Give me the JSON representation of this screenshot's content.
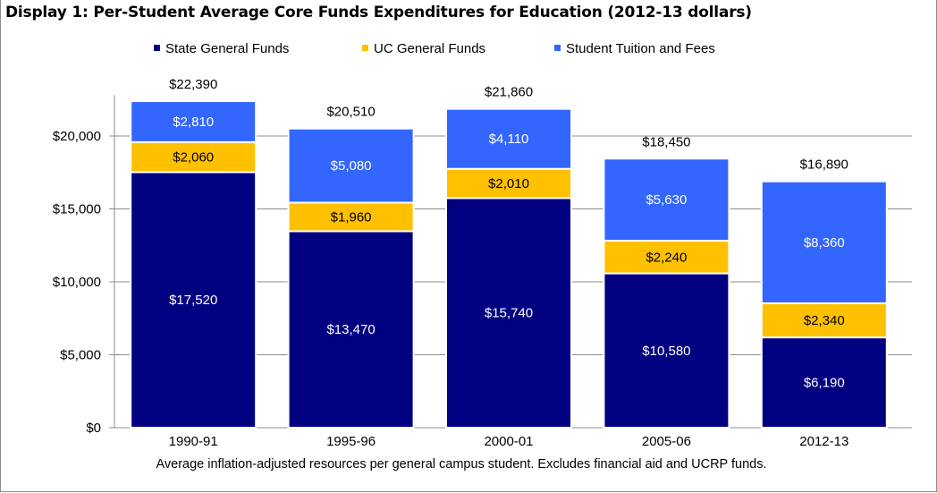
{
  "title": "Display 1: Per-Student Average Core Funds Expenditures for Education (2012-13 dollars)",
  "caption": "Average inflation-adjusted resources per general campus student.  Excludes financial aid and UCRP funds.",
  "chart_data": {
    "type": "bar",
    "stacked": true,
    "title": "Display 1: Per-Student Average Core Funds Expenditures for Education (2012-13 dollars)",
    "xlabel": "",
    "ylabel": "",
    "ylim": [
      0,
      22500
    ],
    "yticks": [
      0,
      5000,
      10000,
      15000,
      20000
    ],
    "ytick_labels": [
      "$0",
      "$5,000",
      "$10,000",
      "$15,000",
      "$20,000"
    ],
    "grid": true,
    "legend_position": "top",
    "categories": [
      "1990-91",
      "1995-96",
      "2000-01",
      "2005-06",
      "2012-13"
    ],
    "series": [
      {
        "name": "State General Funds",
        "color": "#000080",
        "values": [
          17520,
          13470,
          15740,
          10580,
          6190
        ],
        "labels": [
          "$17,520",
          "$13,470",
          "$15,740",
          "$10,580",
          "$6,190"
        ]
      },
      {
        "name": "UC General Funds",
        "color": "#FFC000",
        "values": [
          2060,
          1960,
          2010,
          2240,
          2340
        ],
        "labels": [
          "$2,060",
          "$1,960",
          "$2,010",
          "$2,240",
          "$2,340"
        ]
      },
      {
        "name": "Student Tuition and Fees",
        "color": "#3366FF",
        "values": [
          2810,
          5080,
          4110,
          5630,
          8360
        ],
        "labels": [
          "$2,810",
          "$5,080",
          "$4,110",
          "$5,630",
          "$8,360"
        ]
      }
    ],
    "totals": [
      22390,
      20510,
      21860,
      18450,
      16890
    ],
    "total_labels": [
      "$22,390",
      "$20,510",
      "$21,860",
      "$18,450",
      "$16,890"
    ]
  }
}
